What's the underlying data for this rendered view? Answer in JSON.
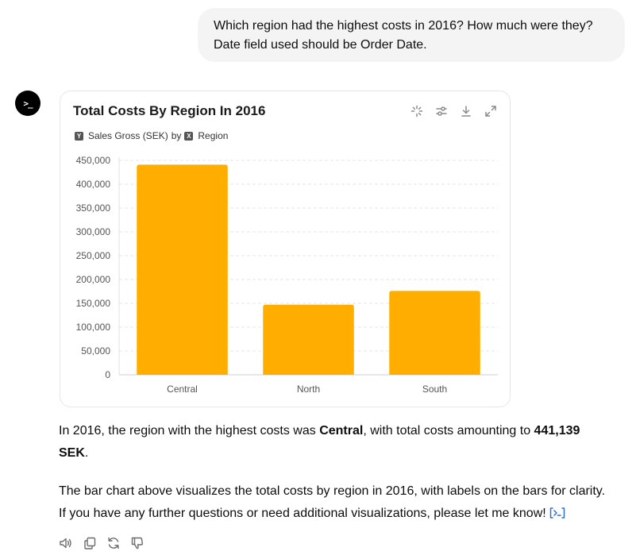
{
  "user_message": {
    "line1": "Which region had the highest costs in 2016? How much were they?",
    "line2": "Date field used should be Order Date."
  },
  "assistant": {
    "avatar_glyph": ">_",
    "chart_card": {
      "title": "Total Costs By Region In 2016",
      "y_axis_chip": "Y",
      "y_field": "Sales Gross (SEK)",
      "by_text": "by",
      "x_axis_chip": "X",
      "x_field": "Region",
      "toolbar_icons": [
        "sparkle-icon",
        "sliders-icon",
        "download-icon",
        "expand-icon"
      ]
    },
    "answer": {
      "p1_before": "In 2016, the region with the highest costs was ",
      "p1_region": "Central",
      "p1_middle": ", with total costs amounting to ",
      "p1_amount": "441,139",
      "p1_currency": "SEK",
      "p1_end": ".",
      "p2_line1": "The bar chart above visualizes the total costs by region in 2016, with labels on the bars for clarity.",
      "p2_line2": "If you have any further questions or need additional visualizations, please let me know!"
    },
    "action_icons": [
      "speaker-icon",
      "copy-icon",
      "regenerate-icon",
      "thumbs-down-icon"
    ]
  },
  "colors": {
    "bar": "#FFAE00",
    "grid": "#e5e5e5",
    "axis_text": "#555555",
    "cite": "#2f6fd6"
  },
  "chart_data": {
    "type": "bar",
    "title": "Total Costs By Region In 2016",
    "xlabel": "",
    "ylabel": "",
    "categories": [
      "Central",
      "North",
      "South"
    ],
    "values": [
      441139,
      147000,
      176000
    ],
    "yticks": [
      0,
      50000,
      100000,
      150000,
      200000,
      250000,
      300000,
      350000,
      400000,
      450000
    ],
    "ytick_labels": [
      "0",
      "50,000",
      "100,000",
      "150,000",
      "200,000",
      "250,000",
      "300,000",
      "350,000",
      "400,000",
      "450,000"
    ],
    "ylim": [
      0,
      450000
    ],
    "grid": true,
    "legend": "none"
  }
}
